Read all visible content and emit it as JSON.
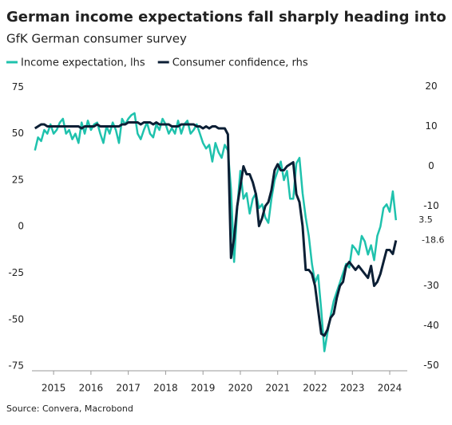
{
  "chart_data": {
    "type": "line",
    "title": "German income expectations fall sharply heading into Sep",
    "subtitle": "GfK German consumer survey",
    "source": "Source: Convera, Macrobond",
    "x": [
      2015,
      2015.083,
      2015.167,
      2015.25,
      2015.333,
      2015.417,
      2015.5,
      2015.583,
      2015.667,
      2015.75,
      2015.833,
      2015.917,
      2016,
      2016.083,
      2016.167,
      2016.25,
      2016.333,
      2016.417,
      2016.5,
      2016.583,
      2016.667,
      2016.75,
      2016.833,
      2016.917,
      2017,
      2017.083,
      2017.167,
      2017.25,
      2017.333,
      2017.417,
      2017.5,
      2017.583,
      2017.667,
      2017.75,
      2017.833,
      2017.917,
      2018,
      2018.083,
      2018.167,
      2018.25,
      2018.333,
      2018.417,
      2018.5,
      2018.583,
      2018.667,
      2018.75,
      2018.833,
      2018.917,
      2019,
      2019.083,
      2019.167,
      2019.25,
      2019.333,
      2019.417,
      2019.5,
      2019.583,
      2019.667,
      2019.75,
      2019.833,
      2019.917,
      2020,
      2020.083,
      2020.167,
      2020.25,
      2020.333,
      2020.417,
      2020.5,
      2020.583,
      2020.667,
      2020.75,
      2020.833,
      2020.917,
      2021,
      2021.083,
      2021.167,
      2021.25,
      2021.333,
      2021.417,
      2021.5,
      2021.583,
      2021.667,
      2021.75,
      2021.833,
      2021.917,
      2022,
      2022.083,
      2022.167,
      2022.25,
      2022.333,
      2022.417,
      2022.5,
      2022.583,
      2022.667,
      2022.75,
      2022.833,
      2022.917,
      2023,
      2023.083,
      2023.167,
      2023.25,
      2023.333,
      2023.417,
      2023.5,
      2023.583,
      2023.667,
      2023.75,
      2023.833,
      2023.917,
      2024,
      2024.083,
      2024.167,
      2024.25,
      2024.333,
      2024.417,
      2024.5,
      2024.583,
      2024.667
    ],
    "series": [
      {
        "name": "Income expectation, lhs",
        "color": "#1fc2ad",
        "axis": "y",
        "values": [
          41,
          48,
          46,
          52,
          50,
          55,
          50,
          52,
          56,
          58,
          50,
          52,
          47,
          50,
          45,
          56,
          50,
          57,
          52,
          55,
          56,
          50,
          45,
          54,
          50,
          56,
          52,
          45,
          58,
          55,
          58,
          60,
          61,
          50,
          47,
          52,
          56,
          50,
          48,
          55,
          52,
          58,
          55,
          50,
          53,
          50,
          57,
          50,
          55,
          57,
          50,
          52,
          55,
          50,
          45,
          42,
          44,
          35,
          45,
          40,
          37,
          44,
          41,
          20,
          -19,
          10,
          30,
          15,
          18,
          7,
          15,
          18,
          10,
          12,
          5,
          2,
          15,
          25,
          30,
          35,
          25,
          30,
          15,
          15,
          34,
          37,
          18,
          5,
          -5,
          -20,
          -30,
          -26,
          -45,
          -67,
          -57,
          -48,
          -40,
          -35,
          -30,
          -25,
          -20,
          -22,
          -10,
          -12,
          -15,
          -5,
          -8,
          -15,
          -10,
          -18,
          -5,
          0,
          10,
          12,
          8,
          19,
          3.5
        ]
      },
      {
        "name": "Consumer confidence, rhs",
        "color": "#0c1f35",
        "axis": "y2",
        "values": [
          9.5,
          10,
          10.5,
          10.5,
          10,
          10,
          10,
          10,
          10,
          10,
          10,
          10,
          10,
          10,
          10,
          9.5,
          10,
          10,
          10,
          10,
          10.5,
          10,
          10,
          10,
          10,
          10,
          10,
          10,
          10.5,
          10.5,
          11,
          11,
          11,
          11,
          10.5,
          11,
          11,
          11,
          10.5,
          11,
          10.5,
          10.5,
          10.5,
          10.5,
          10,
          10,
          10,
          10.5,
          10.5,
          10.5,
          10.5,
          10.5,
          10,
          10,
          9.5,
          10,
          9.5,
          10,
          10,
          9.5,
          9.5,
          9.5,
          8,
          -23,
          -18,
          -10,
          -5,
          0,
          -2,
          -2,
          -4,
          -7,
          -15,
          -13,
          -10,
          -9,
          -6,
          -1,
          0.5,
          -1,
          -1,
          0,
          0.5,
          1,
          -7,
          -9,
          -15,
          -26,
          -26,
          -27,
          -30,
          -36,
          -42,
          -42.5,
          -41,
          -38,
          -37,
          -33,
          -30,
          -29,
          -25,
          -24,
          -25,
          -26,
          -25,
          -26,
          -27,
          -28,
          -25,
          -30,
          -29,
          -27,
          -24,
          -21,
          -21,
          -22,
          -18.6
        ]
      }
    ],
    "annotations": [
      {
        "label": "3.5",
        "value": 3.5,
        "axis": "y"
      },
      {
        "label": "-18.6",
        "value": -18.6,
        "axis": "y2"
      }
    ],
    "xlim": [
      2014.92,
      2024.97
    ],
    "xticks": [
      {
        "value": 2015.5,
        "label": "2015"
      },
      {
        "value": 2016.5,
        "label": "2016"
      },
      {
        "value": 2017.5,
        "label": "2017"
      },
      {
        "value": 2018.5,
        "label": "2018"
      },
      {
        "value": 2019.5,
        "label": "2019"
      },
      {
        "value": 2020.5,
        "label": "2020"
      },
      {
        "value": 2021.5,
        "label": "2021"
      },
      {
        "value": 2022.5,
        "label": "2022"
      },
      {
        "value": 2023.5,
        "label": "2023"
      },
      {
        "value": 2024.5,
        "label": "2024"
      }
    ],
    "ylim": [
      -77.5,
      79
    ],
    "yticks": [
      75,
      50,
      25,
      0,
      -25,
      -50,
      -75
    ],
    "y2lim": [
      -51.3,
      21.7
    ],
    "y2ticks": [
      20,
      10,
      0,
      -10,
      -30,
      -40,
      -50
    ],
    "grid": false
  }
}
